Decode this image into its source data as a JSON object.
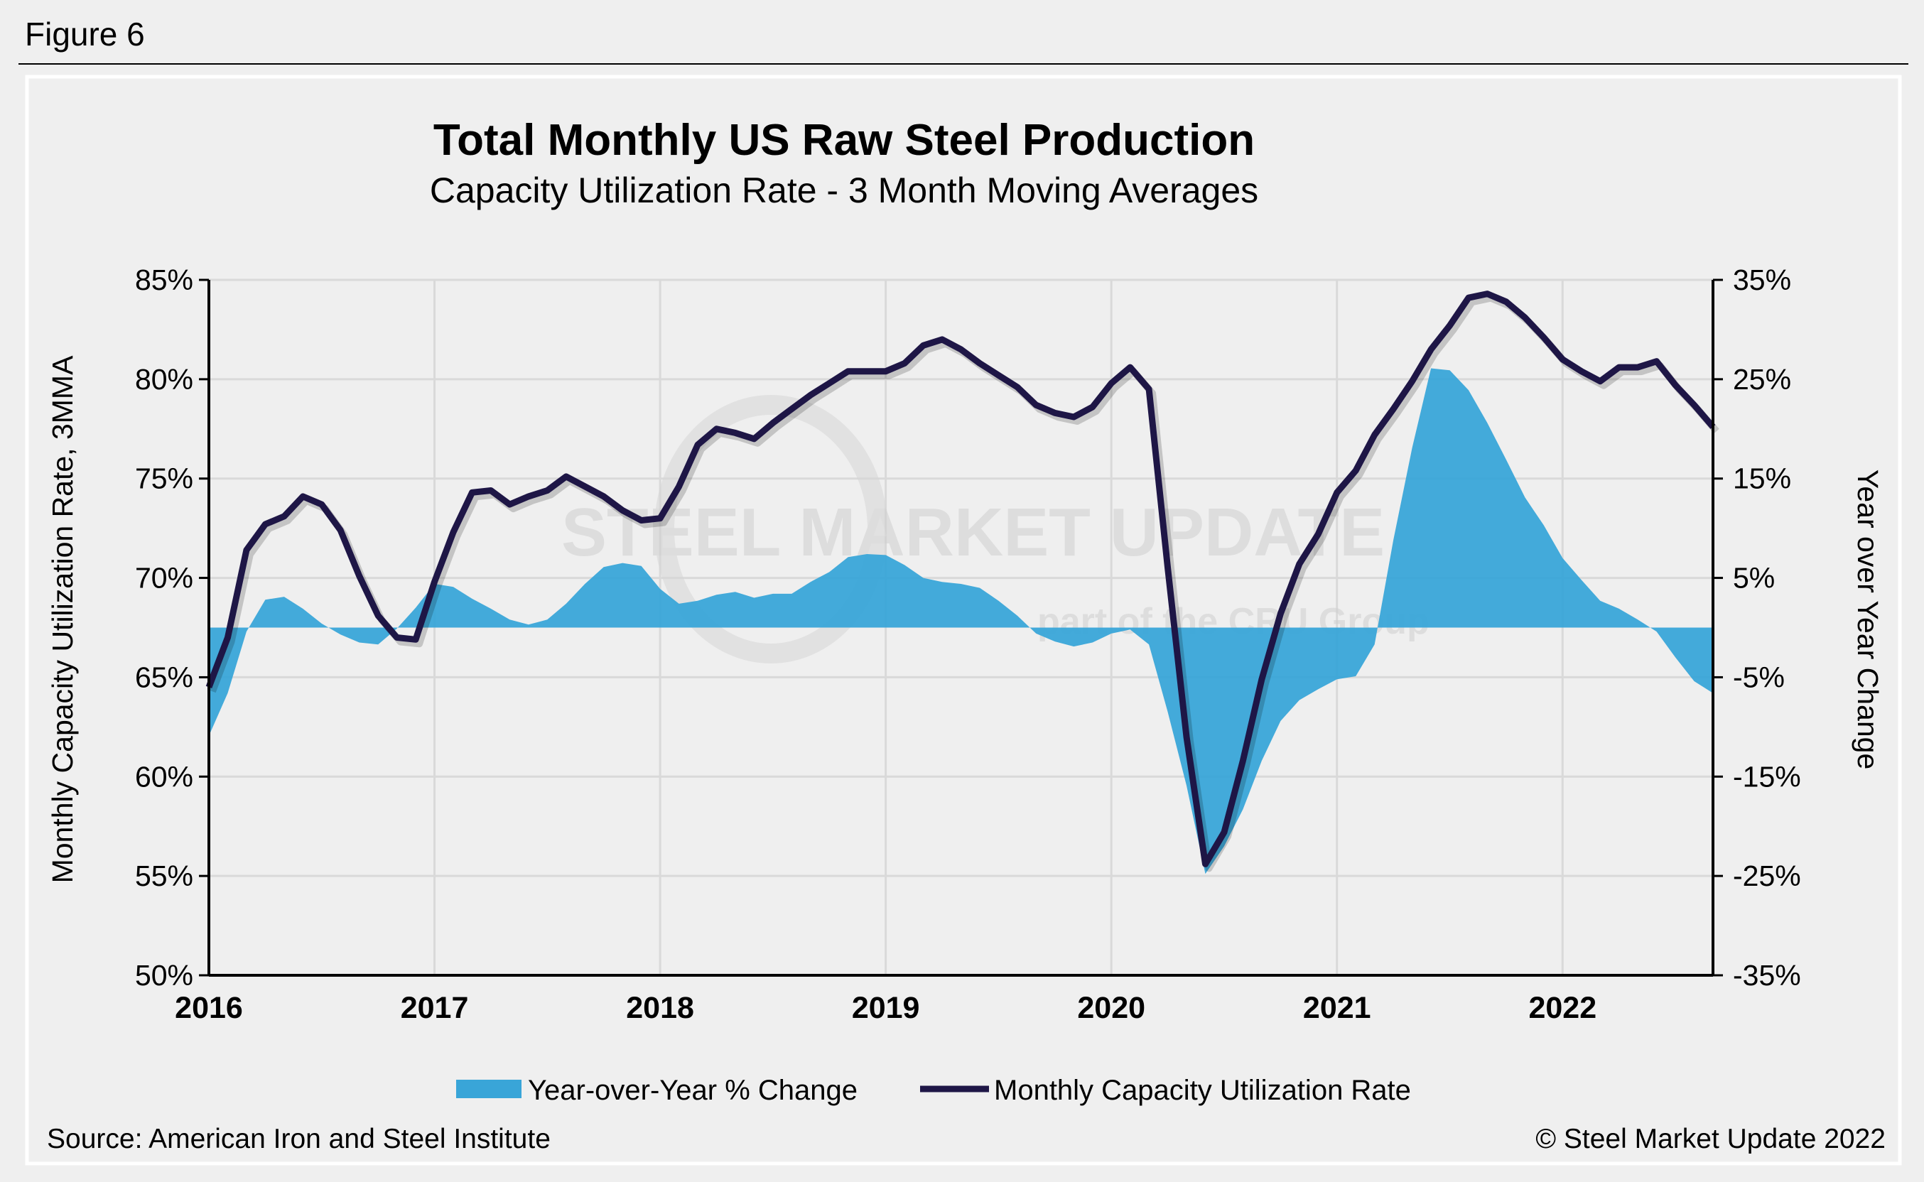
{
  "figure_label": "Figure 6",
  "watermark": {
    "main": "STEEL MARKET UPDATE",
    "sub": "part of the CRU Group"
  },
  "footer": {
    "source": "Source: American Iron and Steel Institute",
    "copyright": "© Steel Market Update 2022"
  },
  "colors": {
    "area": "#39a5d8",
    "line": "#1e1646",
    "background": "#efefef",
    "grid": "#d9d9d9"
  },
  "chart_data": {
    "type": "line+area",
    "title": "Total Monthly US Raw Steel Production",
    "subtitle": "Capacity Utilization Rate - 3 Month Moving Averages",
    "ylabel_left": "Monthly Capacity Utilization Rate, 3MMA",
    "ylabel_right": "Year over Year Change",
    "x_start": "2016-01",
    "x_end": "2022-09",
    "x_frequency": "monthly",
    "x_tick_labels": [
      "2016",
      "2017",
      "2018",
      "2019",
      "2020",
      "2021",
      "2022"
    ],
    "ylim_left": [
      50,
      85
    ],
    "yticks_left": [
      "85%",
      "80%",
      "75%",
      "70%",
      "65%",
      "60%",
      "55%",
      "50%"
    ],
    "ylim_right": [
      -35,
      35
    ],
    "yticks_right": [
      "35%",
      "25%",
      "15%",
      "5%",
      "-5%",
      "-15%",
      "-25%",
      "-35%"
    ],
    "grid": true,
    "legend_position": "bottom",
    "series": [
      {
        "name": "Year-over-Year % Change",
        "type": "area",
        "axis": "right",
        "values": [
          -10.9,
          -6.6,
          -0.4,
          2.8,
          3.1,
          1.9,
          0.4,
          -0.7,
          -1.5,
          -1.7,
          -0.1,
          2.0,
          4.4,
          4.1,
          2.9,
          1.9,
          0.8,
          0.3,
          0.8,
          2.4,
          4.4,
          6.1,
          6.5,
          6.2,
          3.9,
          2.4,
          2.7,
          3.3,
          3.6,
          3.0,
          3.4,
          3.4,
          4.6,
          5.6,
          7.1,
          7.4,
          7.3,
          6.3,
          5.0,
          4.6,
          4.4,
          4.0,
          2.7,
          1.2,
          -0.6,
          -1.4,
          -1.9,
          -1.5,
          -0.6,
          -0.2,
          -1.7,
          -8.5,
          -15.9,
          -24.8,
          -22.0,
          -18.3,
          -13.4,
          -9.4,
          -7.3,
          -6.2,
          -5.2,
          -4.9,
          -1.7,
          8.8,
          18.1,
          26.1,
          25.9,
          23.9,
          20.6,
          16.9,
          13.1,
          10.3,
          7.0,
          4.8,
          2.7,
          1.9,
          0.8,
          -0.4,
          -3.0,
          -5.4,
          -6.6
        ]
      },
      {
        "name": "Monthly Capacity Utilization Rate",
        "type": "line",
        "axis": "left",
        "values": [
          64.5,
          67.0,
          71.4,
          72.7,
          73.1,
          74.1,
          73.7,
          72.4,
          70.1,
          68.1,
          67.0,
          66.9,
          69.8,
          72.3,
          74.3,
          74.4,
          73.7,
          74.1,
          74.4,
          75.1,
          74.6,
          74.1,
          73.4,
          72.9,
          73.0,
          74.6,
          76.7,
          77.5,
          77.3,
          77.0,
          77.8,
          78.5,
          79.2,
          79.8,
          80.4,
          80.4,
          80.4,
          80.8,
          81.7,
          82.0,
          81.5,
          80.8,
          80.2,
          79.6,
          78.7,
          78.3,
          78.1,
          78.6,
          79.8,
          80.6,
          79.5,
          70.5,
          62.0,
          55.6,
          57.2,
          60.8,
          64.9,
          68.2,
          70.7,
          72.2,
          74.3,
          75.4,
          77.2,
          78.5,
          79.9,
          81.5,
          82.7,
          84.1,
          84.3,
          83.9,
          83.1,
          82.1,
          81.0,
          80.4,
          79.9,
          80.6,
          80.6,
          80.9,
          79.7,
          78.7,
          77.6
        ]
      }
    ]
  }
}
